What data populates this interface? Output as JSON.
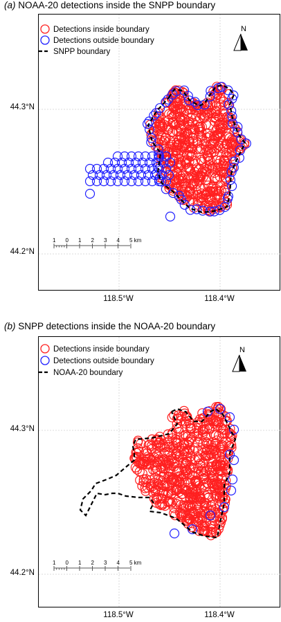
{
  "panels": [
    {
      "letter": "(a)",
      "title": "NOAA-20 detections inside the SNPP boundary",
      "legend": {
        "inside": "Detections inside boundary",
        "outside": "Detections outside boundary",
        "boundary": "SNPP boundary"
      },
      "north": "N",
      "lat_labels": [
        "44.3°N",
        "44.2°N"
      ],
      "lon_labels": [
        "118.5°W",
        "118.4°W"
      ],
      "scale_labels": [
        "1",
        "0",
        "1",
        "2",
        "3",
        "4",
        "5 km"
      ]
    },
    {
      "letter": "(b)",
      "title": "SNPP detections inside the NOAA-20 boundary",
      "legend": {
        "inside": "Detections inside boundary",
        "outside": "Detections outside boundary",
        "boundary": "NOAA-20 boundary"
      },
      "north": "N",
      "lat_labels": [
        "44.3°N",
        "44.2°N"
      ],
      "lon_labels": [
        "118.5°W",
        "118.4°W"
      ],
      "scale_labels": [
        "1",
        "0",
        "1",
        "2",
        "3",
        "4",
        "5 km"
      ]
    }
  ],
  "colors": {
    "inside": "#ff2020",
    "outside": "#2020ff",
    "boundary": "#000000",
    "grid": "#cfcfcf"
  }
}
